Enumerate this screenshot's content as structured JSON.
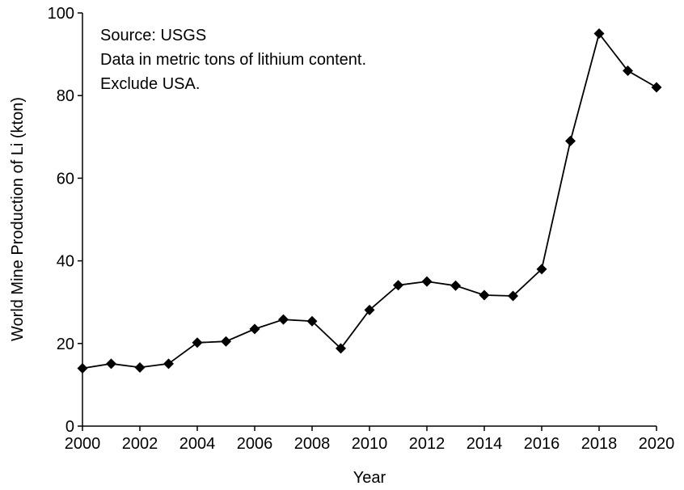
{
  "chart_data": {
    "type": "line",
    "title": "",
    "xlabel": "Year",
    "ylabel": "World Mine Production of Li (kton)",
    "xlim": [
      2000,
      2020
    ],
    "ylim": [
      0,
      100
    ],
    "x_ticks": [
      2000,
      2002,
      2004,
      2006,
      2008,
      2010,
      2012,
      2014,
      2016,
      2018,
      2020
    ],
    "y_ticks": [
      0,
      20,
      40,
      60,
      80,
      100
    ],
    "grid": false,
    "annotations": [
      "Source: USGS",
      "Data in metric tons of lithium content.",
      "Exclude USA."
    ],
    "series": [
      {
        "name": "World Mine Production of Li",
        "marker": "diamond",
        "color": "#000000",
        "x": [
          2000,
          2001,
          2002,
          2003,
          2004,
          2005,
          2006,
          2007,
          2008,
          2009,
          2010,
          2011,
          2012,
          2013,
          2014,
          2015,
          2016,
          2017,
          2018,
          2019,
          2020
        ],
        "y": [
          14,
          15.1,
          14.2,
          15.1,
          20.2,
          20.5,
          23.5,
          25.8,
          25.4,
          18.8,
          28.1,
          34.1,
          35.0,
          34.0,
          31.7,
          31.5,
          38.0,
          69.0,
          95.0,
          86.0,
          82.0
        ]
      }
    ]
  }
}
